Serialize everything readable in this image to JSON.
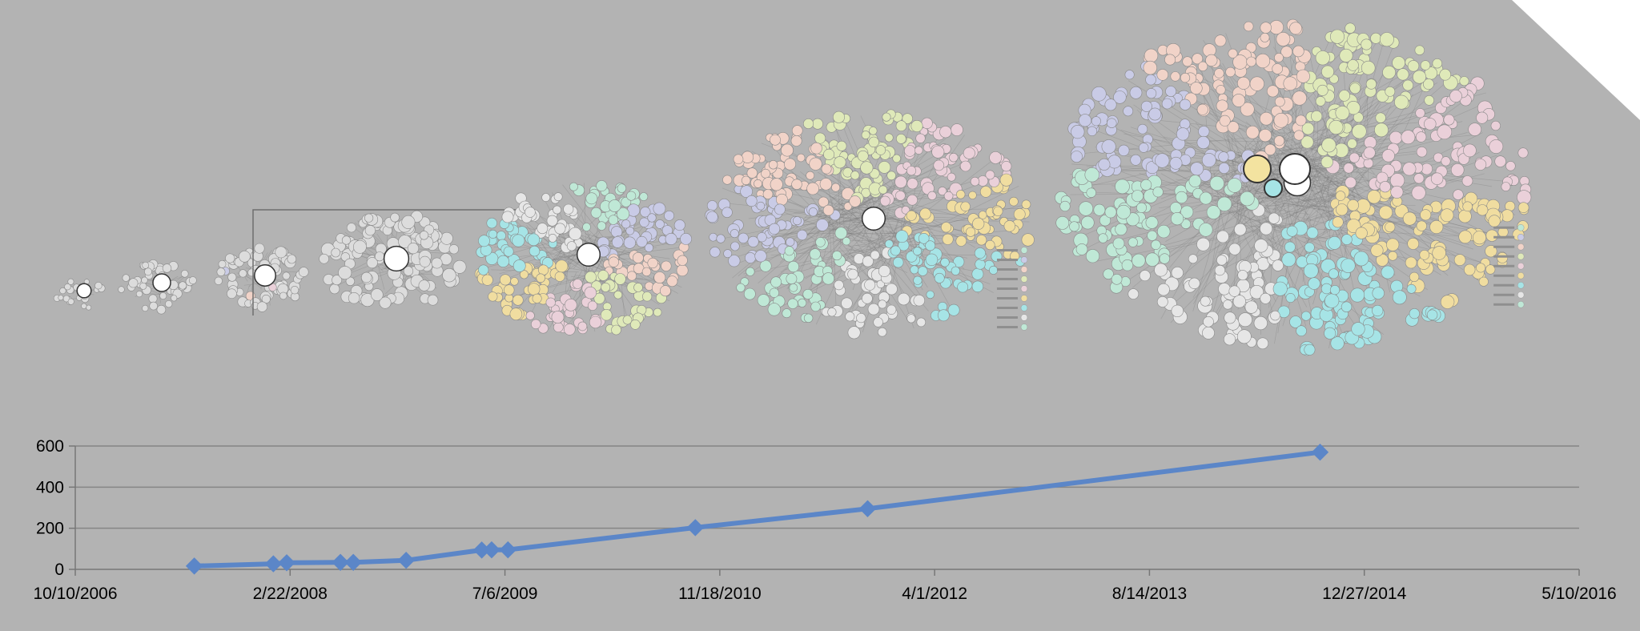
{
  "figure": {
    "background": "#b3b3b3",
    "cloud_colors": [
      "#bfe8d6",
      "#c9cbe6",
      "#f1d3c8",
      "#dfe9b9",
      "#ead0d9",
      "#f0dda0",
      "#a6e4e6",
      "#e6e6e6"
    ],
    "cloud_count": 8
  },
  "chart_data": {
    "type": "line",
    "title": "",
    "xlabel": "",
    "ylabel": "",
    "series": [
      {
        "color": "#5b86c8",
        "marker": "diamond",
        "points": [
          {
            "x": "2007-07-14",
            "y": 16
          },
          {
            "x": "2008-01-14",
            "y": 27
          },
          {
            "x": "2008-02-14",
            "y": 32
          },
          {
            "x": "2008-06-18",
            "y": 34
          },
          {
            "x": "2008-07-18",
            "y": 34
          },
          {
            "x": "2008-11-18",
            "y": 44
          },
          {
            "x": "2009-05-13",
            "y": 94
          },
          {
            "x": "2009-06-05",
            "y": 95
          },
          {
            "x": "2009-07-13",
            "y": 95
          },
          {
            "x": "2010-09-22",
            "y": 203
          },
          {
            "x": "2011-10-28",
            "y": 295
          },
          {
            "x": "2014-09-15",
            "y": 570
          }
        ]
      }
    ],
    "x_range": [
      "2006-10-10",
      "2016-05-10"
    ],
    "x_ticks": [
      "10/10/2006",
      "2/22/2008",
      "7/6/2009",
      "11/18/2010",
      "4/1/2012",
      "8/14/2013",
      "12/27/2014",
      "5/10/2016"
    ],
    "ylim": [
      0,
      600
    ],
    "y_ticks": [
      0,
      200,
      400,
      600
    ],
    "grid": true,
    "legend": "none"
  }
}
